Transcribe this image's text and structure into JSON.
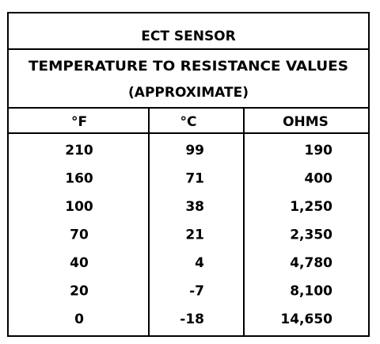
{
  "table": {
    "title": "ECT SENSOR",
    "subtitle": [
      "TEMPERATURE TO RESISTANCE VALUES",
      "(APPROXIMATE)"
    ],
    "headers": [
      "°F",
      "°C",
      "OHMS"
    ],
    "rows": [
      [
        "210",
        "99",
        "190"
      ],
      [
        "160",
        "71",
        "400"
      ],
      [
        "100",
        "38",
        "1,250"
      ],
      [
        "70",
        "21",
        "2,350"
      ],
      [
        "40",
        "4",
        "4,780"
      ],
      [
        "20",
        "-7",
        "8,100"
      ],
      [
        "0",
        "-18",
        "14,650"
      ]
    ]
  }
}
